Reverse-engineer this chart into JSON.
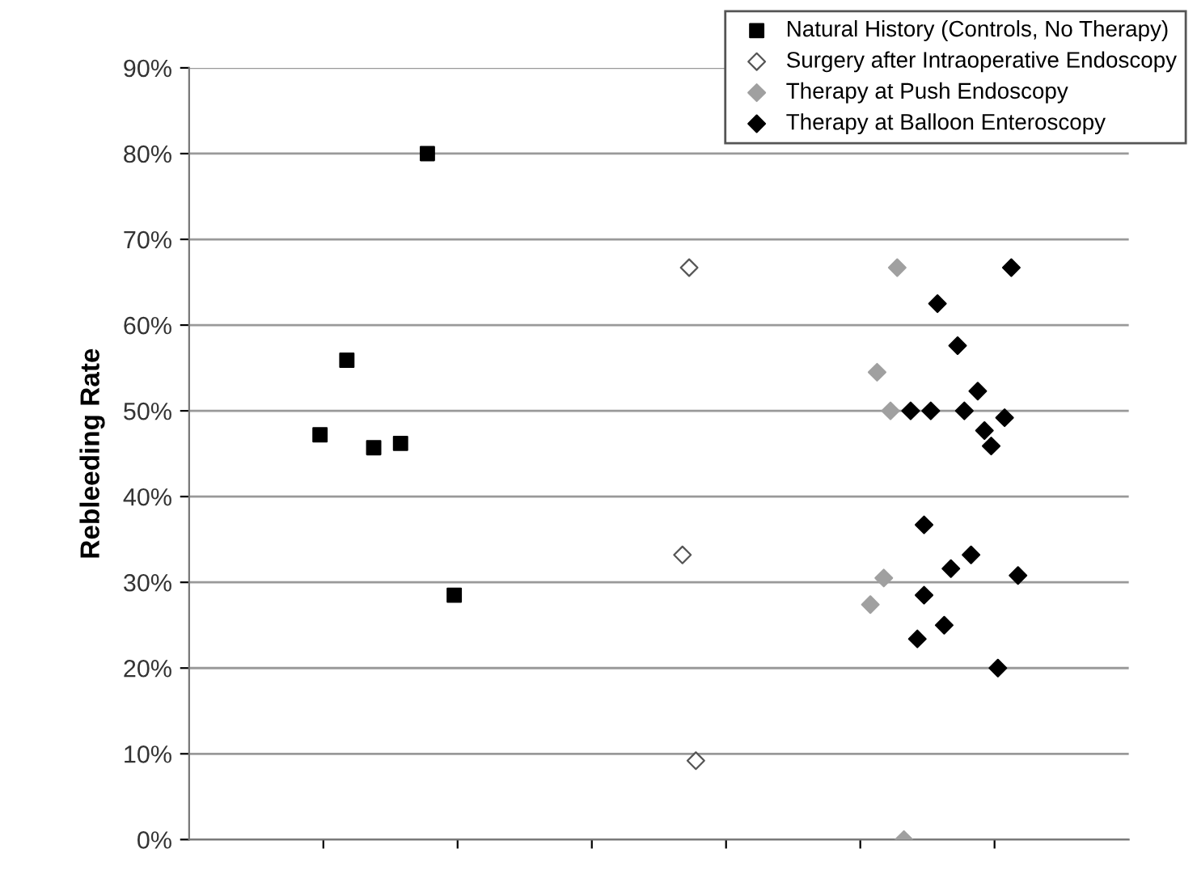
{
  "chart_data": {
    "type": "scatter",
    "ylabel": "Rebleeding Rate",
    "categories": [
      null,
      null,
      null,
      null,
      null,
      null,
      null,
      null,
      null,
      null,
      null,
      null,
      null,
      null,
      null,
      null,
      null,
      null,
      null,
      null,
      null,
      null,
      null,
      null,
      null,
      null,
      null,
      null,
      null,
      null,
      null,
      null,
      null,
      null,
      null,
      null,
      null,
      null,
      null,
      null,
      null,
      null,
      null,
      null,
      null,
      null,
      null,
      null,
      null,
      null,
      null,
      null,
      null,
      null,
      null,
      null,
      null,
      null,
      null,
      null,
      null,
      null,
      null,
      null,
      null,
      null,
      null,
      null,
      null,
      null,
      null,
      null,
      null,
      null,
      null,
      null,
      null,
      null,
      null,
      null,
      null,
      null,
      null,
      null,
      null,
      null,
      null,
      null,
      null,
      null,
      null,
      null,
      null,
      null,
      null,
      null,
      null,
      null,
      null,
      null,
      null,
      null,
      null,
      null,
      null,
      null,
      null,
      null,
      null,
      null,
      null,
      null,
      null,
      null,
      null,
      null,
      null,
      null,
      null,
      null,
      null,
      null,
      null,
      null,
      null,
      null,
      null,
      null,
      null,
      null,
      null,
      null,
      null,
      null,
      null,
      null,
      null,
      null,
      null,
      null
    ],
    "ylim": [
      0,
      90
    ],
    "yticks": [
      {
        "value": 0,
        "label": "0%"
      },
      {
        "value": 10,
        "label": "10%"
      },
      {
        "value": 20,
        "label": "20%"
      },
      {
        "value": 30,
        "label": "30%"
      },
      {
        "value": 40,
        "label": "40%"
      },
      {
        "value": 50,
        "label": "50%"
      },
      {
        "value": 60,
        "label": "60%"
      },
      {
        "value": 70,
        "label": "70%"
      },
      {
        "value": 80,
        "label": "80%"
      },
      {
        "value": 90,
        "label": "90%"
      }
    ],
    "tick_labels": "y",
    "grid": "y",
    "legend": "top right",
    "series": [
      {
        "name": "Natural History (Controls, No Therapy)",
        "color": "#000000",
        "marker": "square",
        "values": [
          null,
          null,
          null,
          null,
          null,
          null,
          null,
          null,
          null,
          null,
          null,
          null,
          null,
          null,
          null,
          null,
          null,
          null,
          null,
          47.2,
          null,
          null,
          null,
          55.9,
          null,
          null,
          null,
          45.7,
          null,
          null,
          null,
          46.2,
          null,
          null,
          null,
          80,
          null,
          null,
          null,
          28.5,
          null,
          null,
          null,
          null,
          null,
          null,
          null,
          null,
          null,
          null,
          null,
          null,
          null,
          null,
          null,
          null,
          null,
          null,
          null,
          null,
          null,
          null,
          null,
          null,
          null,
          null,
          null,
          null,
          null,
          null,
          null,
          null,
          null,
          null,
          null,
          null,
          null,
          null,
          null,
          null,
          null,
          null,
          null,
          null,
          null,
          null,
          null,
          null,
          null,
          null,
          null,
          null,
          null,
          null,
          null,
          null,
          null,
          null,
          null,
          null,
          null,
          null,
          null,
          null,
          null,
          null,
          null,
          null,
          null,
          null,
          null,
          null,
          null,
          null,
          null,
          null,
          null,
          null,
          null,
          null,
          null,
          null,
          null,
          null,
          null,
          null,
          null,
          null,
          null,
          null,
          null,
          null,
          null,
          null,
          null,
          null,
          null,
          null,
          null,
          null
        ]
      },
      {
        "name": "Surgery after Intraoperative Endoscopy",
        "color": "#ffffff",
        "marker": "diamond",
        "values": [
          null,
          null,
          null,
          null,
          null,
          null,
          null,
          null,
          null,
          null,
          null,
          null,
          null,
          null,
          null,
          null,
          null,
          null,
          null,
          null,
          null,
          null,
          null,
          null,
          null,
          null,
          null,
          null,
          null,
          null,
          null,
          null,
          null,
          null,
          null,
          null,
          null,
          null,
          null,
          null,
          null,
          null,
          null,
          null,
          null,
          null,
          null,
          null,
          null,
          null,
          null,
          null,
          null,
          null,
          null,
          null,
          null,
          null,
          null,
          null,
          null,
          null,
          null,
          null,
          null,
          null,
          null,
          null,
          null,
          null,
          null,
          null,
          null,
          33.2,
          66.7,
          9.2,
          null,
          null,
          null,
          null,
          null,
          null,
          null,
          null,
          null,
          null,
          null,
          null,
          null,
          null,
          null,
          null,
          null,
          null,
          null,
          null,
          null,
          null,
          null,
          null,
          null,
          null,
          null,
          null,
          null,
          null,
          null,
          null,
          null,
          null,
          null,
          null,
          null,
          null,
          null,
          null,
          null,
          null,
          null,
          null,
          null,
          null,
          null,
          null,
          null,
          null,
          null,
          null,
          null,
          null,
          null,
          null,
          null,
          null,
          null,
          null,
          null,
          null,
          null,
          null
        ]
      },
      {
        "name": "Therapy at Push Endoscopy",
        "color": "#a0a0a0",
        "marker": "diamond",
        "values": [
          null,
          null,
          null,
          null,
          null,
          null,
          null,
          null,
          null,
          null,
          null,
          null,
          null,
          null,
          null,
          null,
          null,
          null,
          null,
          null,
          null,
          null,
          null,
          null,
          null,
          null,
          null,
          null,
          null,
          null,
          null,
          null,
          null,
          null,
          null,
          null,
          null,
          null,
          null,
          null,
          null,
          null,
          null,
          null,
          null,
          null,
          null,
          null,
          null,
          null,
          null,
          null,
          null,
          null,
          null,
          null,
          null,
          null,
          null,
          null,
          null,
          null,
          null,
          null,
          null,
          null,
          null,
          null,
          null,
          null,
          null,
          null,
          null,
          null,
          null,
          null,
          null,
          null,
          null,
          null,
          null,
          null,
          null,
          null,
          null,
          null,
          null,
          null,
          null,
          null,
          null,
          null,
          null,
          null,
          null,
          null,
          null,
          null,
          null,
          null,
          null,
          27.4,
          54.5,
          30.5,
          50,
          66.7,
          0,
          null,
          null,
          null,
          null,
          null,
          null,
          null,
          null,
          null,
          null,
          null,
          null,
          null,
          null,
          null,
          null,
          null,
          null,
          null,
          null,
          null,
          null,
          null,
          null,
          null,
          null,
          null,
          null,
          null,
          null,
          null,
          null,
          null
        ]
      },
      {
        "name": "Therapy at Balloon Enteroscopy",
        "color": "#000000",
        "marker": "diamond",
        "values": [
          null,
          null,
          null,
          null,
          null,
          null,
          null,
          null,
          null,
          null,
          null,
          null,
          null,
          null,
          null,
          null,
          null,
          null,
          null,
          null,
          null,
          null,
          null,
          null,
          null,
          null,
          null,
          null,
          null,
          null,
          null,
          null,
          null,
          null,
          null,
          null,
          null,
          null,
          null,
          null,
          null,
          null,
          null,
          null,
          null,
          null,
          null,
          null,
          null,
          null,
          null,
          null,
          null,
          null,
          null,
          null,
          null,
          null,
          null,
          null,
          null,
          null,
          null,
          null,
          null,
          null,
          null,
          null,
          null,
          null,
          null,
          null,
          null,
          null,
          null,
          null,
          null,
          null,
          null,
          null,
          null,
          null,
          null,
          null,
          null,
          null,
          null,
          null,
          null,
          null,
          null,
          null,
          null,
          null,
          null,
          null,
          null,
          null,
          null,
          null,
          null,
          null,
          null,
          null,
          null,
          null,
          null,
          50,
          23.4,
          36.7,
          50,
          62.5,
          25.0,
          31.6,
          57.6,
          50,
          33.2,
          52.3,
          47.7,
          45.9,
          20,
          49.2,
          66.7,
          30.8,
          null,
          null,
          null,
          null,
          null,
          null,
          null,
          null,
          null,
          null,
          null,
          null,
          null,
          null,
          null,
          null
        ]
      },
      {
        "color": "#000000",
        "marker": "diamond",
        "values": [
          null,
          null,
          null,
          null,
          null,
          null,
          null,
          null,
          null,
          null,
          null,
          null,
          null,
          null,
          null,
          null,
          null,
          null,
          null,
          null,
          null,
          null,
          null,
          null,
          null,
          null,
          null,
          null,
          null,
          null,
          null,
          null,
          null,
          null,
          null,
          null,
          null,
          null,
          null,
          null,
          null,
          null,
          null,
          null,
          null,
          null,
          null,
          null,
          null,
          null,
          null,
          null,
          null,
          null,
          null,
          null,
          null,
          null,
          null,
          null,
          null,
          null,
          null,
          null,
          null,
          null,
          null,
          null,
          null,
          null,
          null,
          null,
          null,
          null,
          null,
          null,
          null,
          null,
          null,
          null,
          null,
          null,
          null,
          null,
          null,
          null,
          null,
          null,
          null,
          null,
          null,
          null,
          null,
          null,
          null,
          null,
          null,
          null,
          null,
          null,
          null,
          null,
          null,
          null,
          null,
          null,
          null,
          null,
          null,
          28.5,
          null,
          null,
          null,
          null,
          null,
          null,
          null,
          null,
          null,
          null,
          null,
          null,
          null,
          null,
          null,
          null,
          null,
          null,
          null,
          null,
          null,
          null,
          null,
          null,
          null,
          null,
          null,
          null,
          null,
          null
        ]
      }
    ]
  }
}
